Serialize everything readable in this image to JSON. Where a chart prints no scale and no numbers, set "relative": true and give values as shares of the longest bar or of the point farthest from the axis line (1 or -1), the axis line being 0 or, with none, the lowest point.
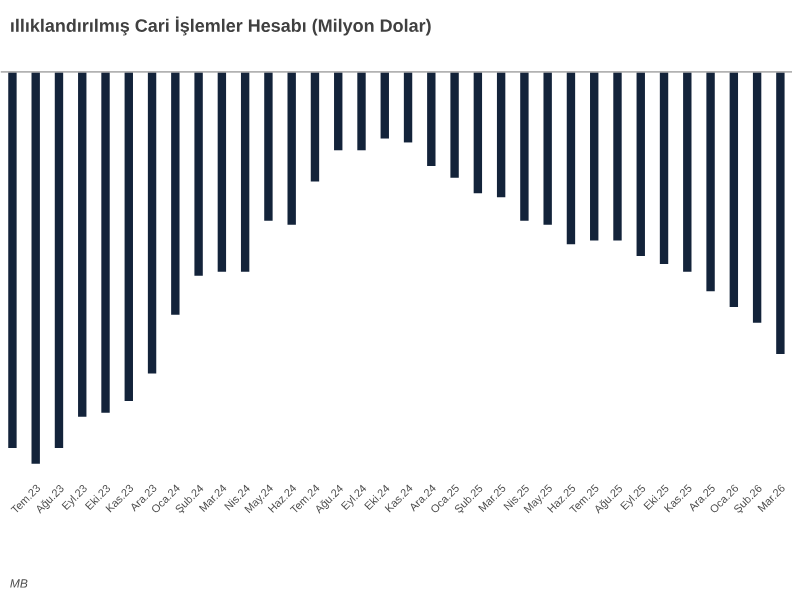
{
  "chart_data": {
    "type": "bar",
    "title": "ıllıklandırılmış Cari İşlemler Hesabı (Milyon Dolar)",
    "relative": true,
    "color": "#13233a",
    "categories": [
      null,
      "Tem.23",
      "Ağu.23",
      "Eyl.23",
      "Eki.23",
      "Kas.23",
      "Ara.23",
      "Oca.24",
      "Şub.24",
      "Mar.24",
      "Nis.24",
      "May.24",
      "Haz.24",
      "Tem.24",
      "Ağu.24",
      "Eyl.24",
      "Eki.24",
      "Kas.24",
      "Ara.24",
      "Oca.25",
      "Şub.25",
      "Mar.25",
      "Nis.25",
      "May.25",
      "Haz.25",
      "Tem.25",
      "Ağu.25",
      "Eyl.25",
      "Eki.25",
      "Kas.25",
      "Ara.25",
      "Oca.26",
      "Şub.26",
      "Mar.26"
    ],
    "values": [
      -0.96,
      -1.0,
      -0.96,
      -0.88,
      -0.87,
      -0.84,
      -0.77,
      -0.62,
      -0.52,
      -0.51,
      -0.51,
      -0.38,
      -0.39,
      -0.28,
      -0.2,
      -0.2,
      -0.17,
      -0.18,
      -0.24,
      -0.27,
      -0.31,
      -0.32,
      -0.38,
      -0.39,
      -0.44,
      -0.43,
      -0.43,
      -0.47,
      -0.49,
      -0.51,
      -0.56,
      -0.6,
      -0.64,
      -0.72
    ],
    "annotations": [
      "MB"
    ]
  }
}
